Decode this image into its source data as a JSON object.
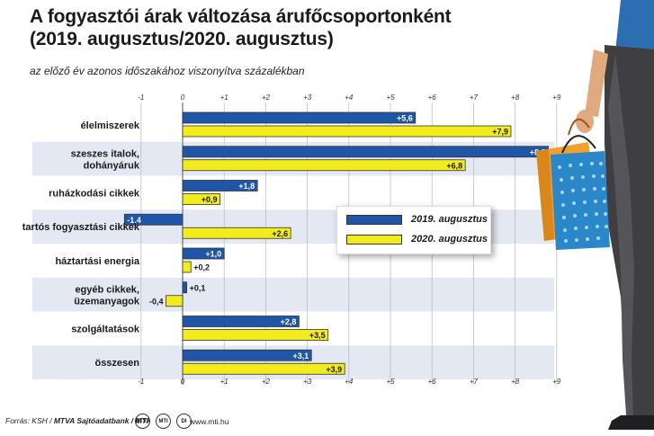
{
  "title_line1": "A fogyasztói árak változása árufőcsoportonként",
  "title_line2": "(2019. augusztus/2020. augusztus)",
  "subtitle": "az előző év azonos időszakához viszonyítva százalékban",
  "source_prefix": "Forrás: KSH / ",
  "source_bold": "MTVA Sajtóadatbank / MTI",
  "logo_labels": [
    "MTVA",
    "MTI",
    "DI"
  ],
  "website": "www.mti.hu",
  "colors": {
    "series_2019": "#1f56a8",
    "series_2020": "#f2ec1c",
    "band": "#e3e8f2",
    "grid": "#b8b8b8"
  },
  "icons": [
    "shopping-bags-illustration",
    "person-legs-illustration"
  ],
  "chart_data": {
    "type": "bar",
    "orientation": "horizontal",
    "categories": [
      "élelmiszerek",
      "szeszes italok, dohányáruk",
      "ruházkodási cikkek",
      "tartós fogyasztási cikkek",
      "háztartási energia",
      "egyéb cikkek, üzemanyagok",
      "szolgáltatások",
      "összesen"
    ],
    "series": [
      {
        "name": "2019. augusztus",
        "values": [
          5.6,
          8.8,
          1.8,
          -1.4,
          1.0,
          0.1,
          2.8,
          3.1
        ],
        "labels": [
          "+5,6",
          "+8,8",
          "+1,8",
          "-1,4",
          "+1,0",
          "+0,1",
          "+2,8",
          "+3,1"
        ]
      },
      {
        "name": "2020. augusztus",
        "values": [
          7.9,
          6.8,
          0.9,
          2.6,
          0.2,
          -0.4,
          3.5,
          3.9
        ],
        "labels": [
          "+7,9",
          "+6,8",
          "+0,9",
          "+2,6",
          "+0,2",
          "-0,4",
          "+3,5",
          "+3,9"
        ]
      }
    ],
    "xlim": [
      -1,
      9
    ],
    "tick_labels": [
      "-1",
      "0",
      "+1",
      "+2",
      "+3",
      "+4",
      "+5",
      "+6",
      "+7",
      "+8",
      "+9"
    ],
    "grid": true,
    "legend_position": "center-right"
  }
}
